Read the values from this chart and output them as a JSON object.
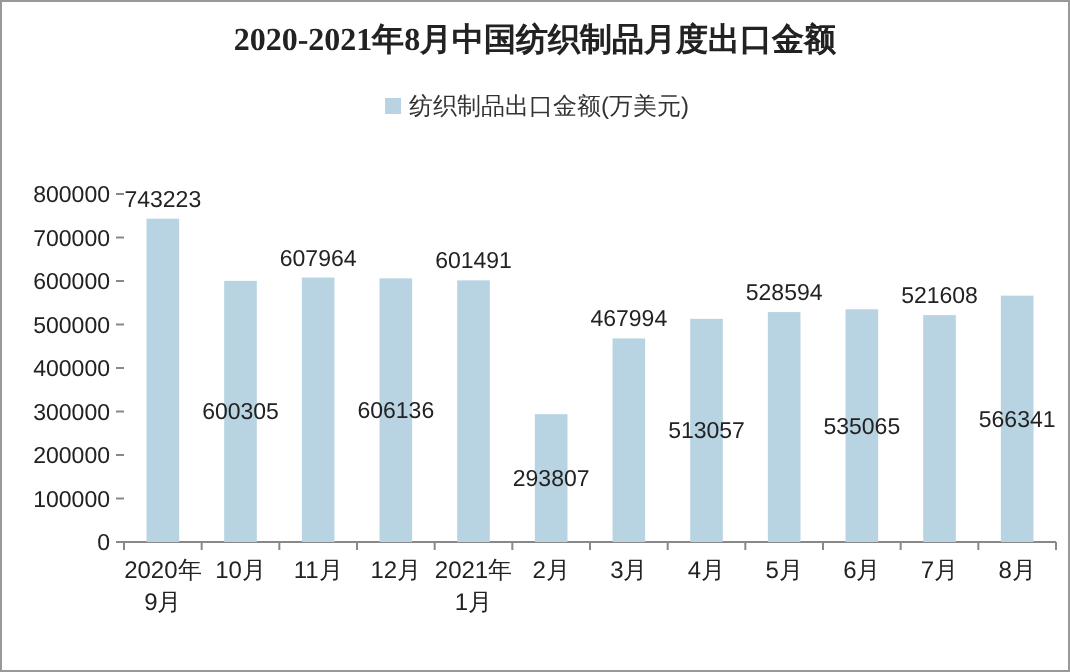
{
  "chart_data": {
    "type": "bar",
    "title": "2020-2021年8月中国纺织制品月度出口金额",
    "categories": [
      "2020年\n9月",
      "10月",
      "11月",
      "12月",
      "2021年\n1月",
      "2月",
      "3月",
      "4月",
      "5月",
      "6月",
      "7月",
      "8月"
    ],
    "series": [
      {
        "name": "纺织制品出口金额(万美元)",
        "color": "#b8d4e3",
        "values": [
          743223,
          600305,
          607964,
          606136,
          601491,
          293807,
          467994,
          513057,
          528594,
          535065,
          521608,
          566341
        ]
      }
    ],
    "ylim": [
      0,
      800000
    ],
    "yticks": [
      0,
      100000,
      200000,
      300000,
      400000,
      500000,
      600000,
      700000,
      800000
    ],
    "data_labels": true,
    "legend": "top",
    "grid": false
  }
}
